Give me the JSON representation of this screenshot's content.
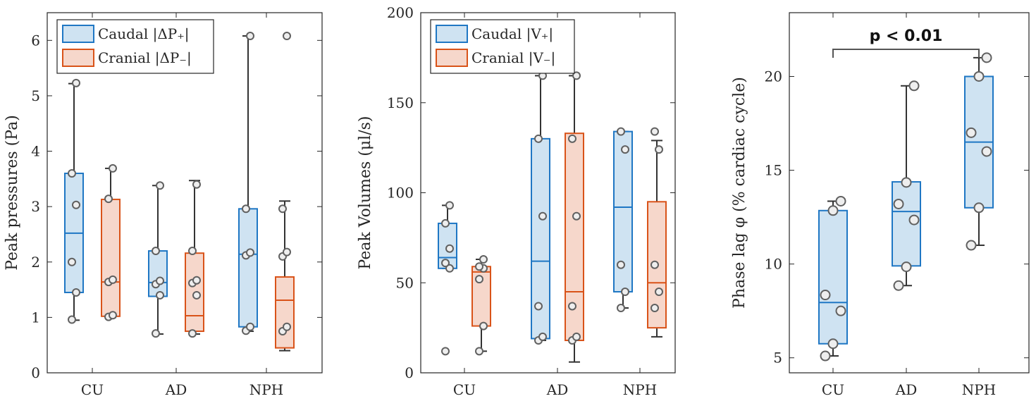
{
  "colors": {
    "caudal_stroke": "#1f77c4",
    "caudal_fill": "#cfe3f2",
    "cranial_stroke": "#d95319",
    "cranial_fill": "#f6d7cb",
    "axis": "#262626",
    "whisker": "#333333",
    "point_stroke": "#606060",
    "point_fill": "#eeeeee"
  },
  "chart_data": [
    {
      "type": "box",
      "title": "",
      "ylabel": "Peak pressures (Pa)",
      "xlabel": "",
      "ylim": [
        0,
        6.5
      ],
      "yticks": [
        0,
        1,
        2,
        3,
        4,
        5,
        6
      ],
      "categories": [
        "CU",
        "AD",
        "NPH"
      ],
      "legend": {
        "placement": "top-left",
        "entries": [
          "Caudal |ΔP₊|",
          "Cranial |ΔP₋|"
        ]
      },
      "series": [
        {
          "name": "Caudal |ΔP₊|",
          "color_key": "caudal",
          "boxes": [
            {
              "q1": 1.45,
              "median": 2.52,
              "q3": 3.6,
              "whisker_low": 0.95,
              "whisker_high": 5.22
            },
            {
              "q1": 1.38,
              "median": 1.63,
              "q3": 2.2,
              "whisker_low": 0.7,
              "whisker_high": 3.38
            },
            {
              "q1": 0.83,
              "median": 2.14,
              "q3": 2.96,
              "whisker_low": 0.75,
              "whisker_high": 6.08
            }
          ],
          "points": [
            [
              0.96,
              1.45,
              2.0,
              3.03,
              3.6,
              5.23
            ],
            [
              0.71,
              1.4,
              1.6,
              1.66,
              2.2,
              3.38
            ],
            [
              0.76,
              0.83,
              2.12,
              2.17,
              2.96,
              6.08
            ]
          ]
        },
        {
          "name": "Cranial |ΔP₋|",
          "color_key": "cranial",
          "boxes": [
            {
              "q1": 1.02,
              "median": 1.64,
              "q3": 3.13,
              "whisker_low": 1.0,
              "whisker_high": 3.69
            },
            {
              "q1": 0.75,
              "median": 1.03,
              "q3": 2.16,
              "whisker_low": 0.7,
              "whisker_high": 3.47
            },
            {
              "q1": 0.45,
              "median": 1.31,
              "q3": 1.73,
              "whisker_low": 0.4,
              "whisker_high": 3.1
            }
          ],
          "points": [
            [
              1.01,
              1.04,
              1.64,
              1.68,
              3.14,
              3.69
            ],
            [
              0.71,
              1.4,
              1.62,
              1.67,
              2.2,
              3.4
            ],
            [
              0.75,
              0.83,
              2.1,
              2.18,
              2.96,
              6.08
            ]
          ]
        }
      ]
    },
    {
      "type": "box",
      "title": "",
      "ylabel": "Peak Volumes (μl/s)",
      "xlabel": "",
      "ylim": [
        0,
        200
      ],
      "yticks": [
        0,
        50,
        100,
        150,
        200
      ],
      "categories": [
        "CU",
        "AD",
        "NPH"
      ],
      "legend": {
        "placement": "top-left",
        "entries": [
          "Caudal |V₊|",
          "Cranial |V₋|"
        ]
      },
      "series": [
        {
          "name": "Caudal |V₊|",
          "color_key": "caudal",
          "boxes": [
            {
              "q1": 58,
              "median": 64,
              "q3": 83,
              "whisker_low": 58,
              "whisker_high": 93
            },
            {
              "q1": 19,
              "median": 62,
              "q3": 130,
              "whisker_low": 18,
              "whisker_high": 165
            },
            {
              "q1": 45,
              "median": 92,
              "q3": 134,
              "whisker_low": 36,
              "whisker_high": 134
            }
          ],
          "points": [
            [
              12,
              58,
              61,
              69,
              83,
              93
            ],
            [
              18,
              20,
              37,
              87,
              130,
              165
            ],
            [
              36,
              45,
              60,
              124,
              134
            ]
          ]
        },
        {
          "name": "Cranial |V₋|",
          "color_key": "cranial",
          "boxes": [
            {
              "q1": 26,
              "median": 56,
              "q3": 59,
              "whisker_low": 12,
              "whisker_high": 63
            },
            {
              "q1": 18,
              "median": 45,
              "q3": 133,
              "whisker_low": 6,
              "whisker_high": 165
            },
            {
              "q1": 25,
              "median": 50,
              "q3": 95,
              "whisker_low": 20,
              "whisker_high": 129
            }
          ],
          "points": [
            [
              12,
              26,
              52,
              58,
              59,
              63
            ],
            [
              18,
              20,
              37,
              87,
              130,
              165
            ],
            [
              36,
              45,
              60,
              124,
              134
            ]
          ]
        }
      ]
    },
    {
      "type": "box",
      "title": "",
      "ylabel": "Phase lag φ (% cardiac cycle)",
      "xlabel": "",
      "ylim": [
        4.2,
        23.4
      ],
      "yticks": [
        5,
        10,
        15,
        20
      ],
      "categories": [
        "CU",
        "AD",
        "NPH"
      ],
      "legend": null,
      "annotation": {
        "text": "p < 0.01",
        "from": "CU",
        "to": "NPH"
      },
      "series": [
        {
          "name": "Phase lag",
          "color_key": "caudal",
          "boxes": [
            {
              "q1": 5.75,
              "median": 7.95,
              "q3": 12.85,
              "whisker_low": 5.1,
              "whisker_high": 13.35
            },
            {
              "q1": 9.9,
              "median": 12.8,
              "q3": 14.38,
              "whisker_low": 8.85,
              "whisker_high": 19.5
            },
            {
              "q1": 13.0,
              "median": 16.5,
              "q3": 20.0,
              "whisker_low": 11.0,
              "whisker_high": 21.0
            }
          ],
          "points": [
            [
              5.1,
              5.75,
              7.5,
              8.35,
              12.85,
              13.35
            ],
            [
              8.85,
              9.85,
              12.35,
              13.2,
              14.35,
              19.5
            ],
            [
              11.0,
              13.0,
              16.0,
              17.0,
              20.0,
              21.0
            ]
          ]
        }
      ]
    }
  ]
}
